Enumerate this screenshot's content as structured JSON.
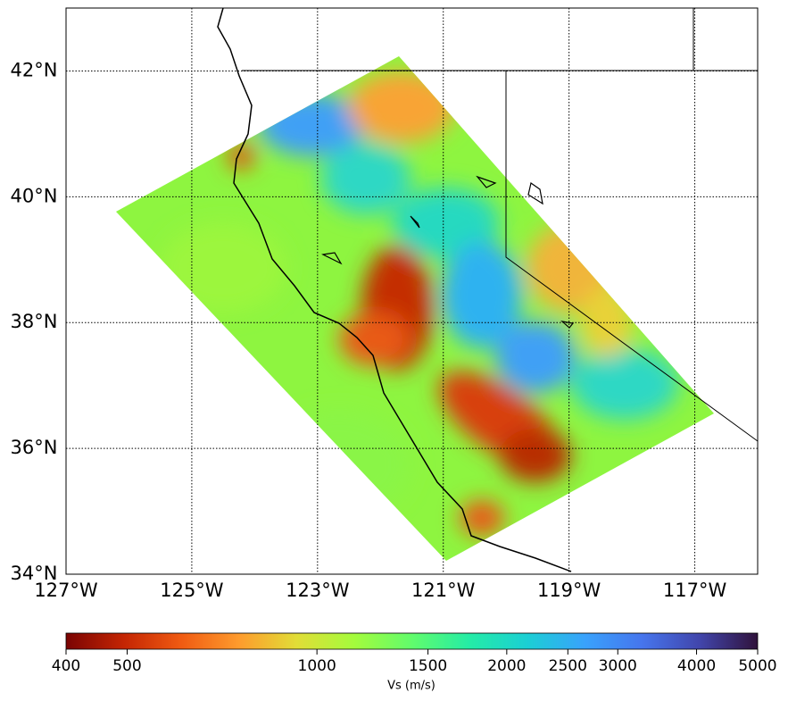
{
  "map": {
    "xlim": [
      -127,
      -116
    ],
    "ylim": [
      34,
      43
    ],
    "xticks": [
      {
        "value": -127,
        "label": "127°W"
      },
      {
        "value": -125,
        "label": "125°W"
      },
      {
        "value": -123,
        "label": "123°W"
      },
      {
        "value": -121,
        "label": "121°W"
      },
      {
        "value": -119,
        "label": "119°W"
      },
      {
        "value": -117,
        "label": "117°W"
      }
    ],
    "yticks": [
      {
        "value": 34,
        "label": "34°N"
      },
      {
        "value": 36,
        "label": "36°N"
      },
      {
        "value": 38,
        "label": "38°N"
      },
      {
        "value": 40,
        "label": "40°N"
      },
      {
        "value": 42,
        "label": "42°N"
      }
    ],
    "grid": true
  },
  "colorbar": {
    "label": "Vs (m/s)",
    "scale": "log",
    "lim": [
      400,
      5000
    ],
    "ticks": [
      400,
      500,
      1000,
      1500,
      2000,
      2500,
      3000,
      4000,
      5000
    ],
    "colors": [
      "#7a0403",
      "#c42503",
      "#f05b12",
      "#fe9b2d",
      "#e1dd37",
      "#a4fc3c",
      "#61fc6c",
      "#24eca6",
      "#1bcfd4",
      "#39a2fc",
      "#4675ed",
      "#4145ab",
      "#30123b"
    ]
  }
}
